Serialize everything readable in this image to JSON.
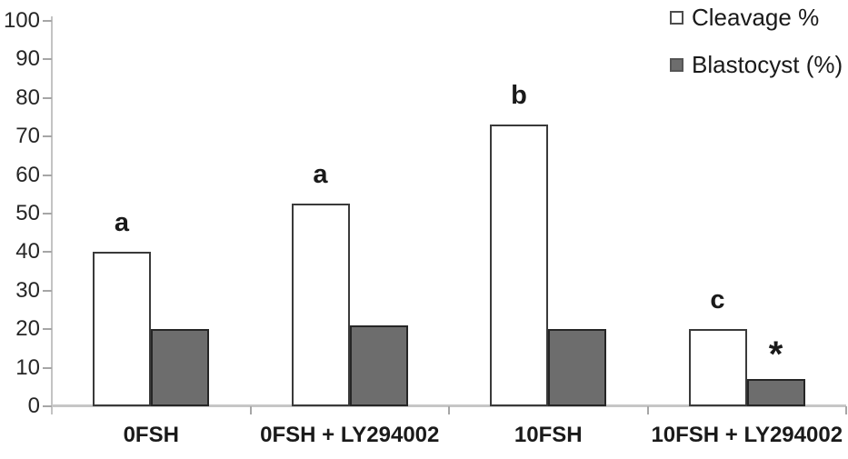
{
  "chart_data": {
    "type": "bar",
    "title": "",
    "xlabel": "",
    "ylabel": "",
    "categories": [
      "0FSH",
      "0FSH + LY294002",
      "10FSH",
      "10FSH + LY294002"
    ],
    "series": [
      {
        "name": "Cleavage %",
        "values": [
          40,
          52.5,
          73,
          20
        ],
        "fill": "#ffffff",
        "border": "#3a3a3a"
      },
      {
        "name": "Blastocyst (%)",
        "values": [
          20,
          21,
          20,
          7
        ],
        "fill": "#6d6d6d",
        "border": "#262626"
      }
    ],
    "annotations": [
      {
        "text": "a",
        "category": 0,
        "series": 0
      },
      {
        "text": "a",
        "category": 1,
        "series": 0
      },
      {
        "text": "b",
        "category": 2,
        "series": 0
      },
      {
        "text": "c",
        "category": 3,
        "series": 0
      },
      {
        "text": "*",
        "category": 3,
        "series": 1
      }
    ],
    "ylim": [
      0,
      100
    ],
    "ytick_step": 10,
    "grid": false,
    "legend_position": "top-right",
    "colors": {
      "axis_line": "#c3c3c3",
      "tick": "#a6a6a6",
      "text": "#1a1a1a"
    }
  }
}
